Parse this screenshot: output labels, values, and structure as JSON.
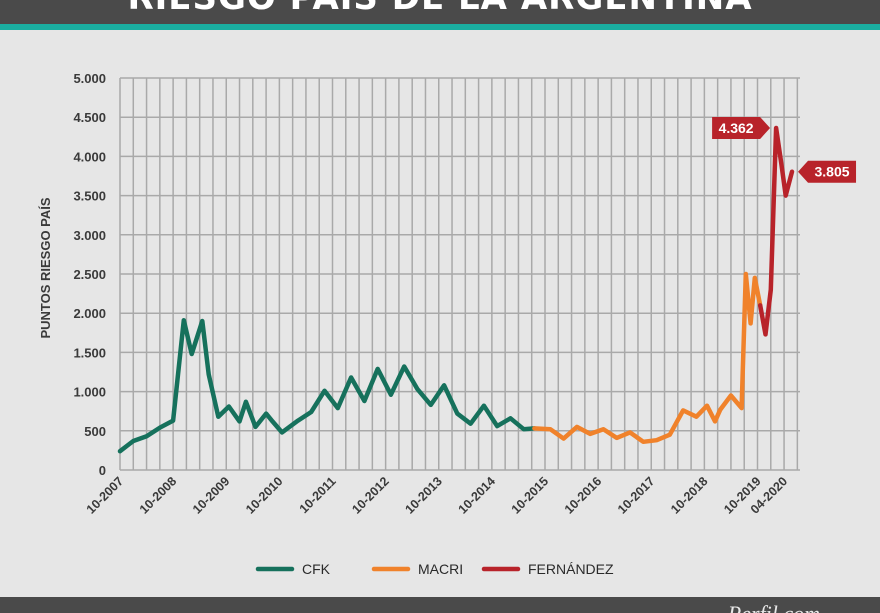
{
  "header": {
    "title": "RIESGO PAÍS DE LA ARGENTINA"
  },
  "footer": {
    "brand": "Perfil.com"
  },
  "colors": {
    "cfk": "#16715c",
    "macri": "#f0822b",
    "fernandez": "#b8232a",
    "accent": "#1aaea0",
    "bar": "#4a4a4a"
  },
  "chart_data": {
    "type": "line",
    "title": "RIESGO PAÍS DE LA ARGENTINA",
    "ylabel": "PUNTOS RIESGO PAÍS",
    "xlabel": "",
    "ylim": [
      0,
      5000
    ],
    "yticks": [
      0,
      500,
      1000,
      1500,
      2000,
      2500,
      3000,
      3500,
      4000,
      4500,
      5000
    ],
    "ytick_labels": [
      "0",
      "500",
      "1.000",
      "1.500",
      "2.000",
      "2.500",
      "3.000",
      "3.500",
      "4.000",
      "4.500",
      "5.000"
    ],
    "xlim": [
      2007.75,
      2020.55
    ],
    "xticks": [
      2007.75,
      2008.75,
      2009.75,
      2010.75,
      2011.75,
      2012.75,
      2013.75,
      2014.75,
      2015.75,
      2016.75,
      2017.75,
      2018.75,
      2019.75,
      2020.25
    ],
    "xtick_labels": [
      "10-2007",
      "10-2008",
      "10-2009",
      "10-2010",
      "10-2011",
      "10-2012",
      "10-2013",
      "10-2014",
      "10-2015",
      "10-2016",
      "10-2017",
      "10-2018",
      "10-2019",
      "04-2020"
    ],
    "grid": true,
    "legend_position": "bottom",
    "series": [
      {
        "name": "CFK",
        "color": "#16715c",
        "x": [
          2007.75,
          2008.0,
          2008.25,
          2008.5,
          2008.75,
          2008.95,
          2009.1,
          2009.3,
          2009.42,
          2009.6,
          2009.8,
          2010.0,
          2010.12,
          2010.3,
          2010.5,
          2010.62,
          2010.8,
          2011.1,
          2011.35,
          2011.6,
          2011.85,
          2012.1,
          2012.35,
          2012.6,
          2012.85,
          2013.1,
          2013.35,
          2013.6,
          2013.85,
          2014.1,
          2014.35,
          2014.6,
          2014.85,
          2015.1,
          2015.35,
          2015.55
        ],
        "y": [
          240,
          370,
          430,
          540,
          630,
          1910,
          1480,
          1900,
          1220,
          680,
          810,
          620,
          870,
          550,
          720,
          620,
          480,
          630,
          740,
          1010,
          790,
          1180,
          880,
          1290,
          960,
          1320,
          1030,
          830,
          1080,
          720,
          590,
          820,
          560,
          660,
          520,
          530
        ]
      },
      {
        "name": "MACRI",
        "color": "#f0822b",
        "x": [
          2015.55,
          2015.85,
          2016.1,
          2016.35,
          2016.6,
          2016.85,
          2017.1,
          2017.35,
          2017.6,
          2017.85,
          2018.1,
          2018.35,
          2018.6,
          2018.8,
          2018.95,
          2019.05,
          2019.25,
          2019.45,
          2019.53,
          2019.62,
          2019.7,
          2019.8
        ],
        "y": [
          530,
          520,
          400,
          550,
          460,
          520,
          410,
          480,
          360,
          380,
          450,
          760,
          680,
          820,
          620,
          770,
          950,
          790,
          2500,
          1870,
          2450,
          2100
        ]
      },
      {
        "name": "FERNÁNDEZ",
        "color": "#b8232a",
        "x": [
          2019.8,
          2019.9,
          2020.0,
          2020.1,
          2020.2,
          2020.28,
          2020.4
        ],
        "y": [
          2100,
          1730,
          2300,
          4362,
          3900,
          3500,
          3805
        ]
      }
    ],
    "annotations": [
      {
        "label": "4.362",
        "x": 2020.1,
        "y": 4362,
        "side": "left"
      },
      {
        "label": "3.805",
        "x": 2020.4,
        "y": 3805,
        "side": "right"
      }
    ]
  }
}
